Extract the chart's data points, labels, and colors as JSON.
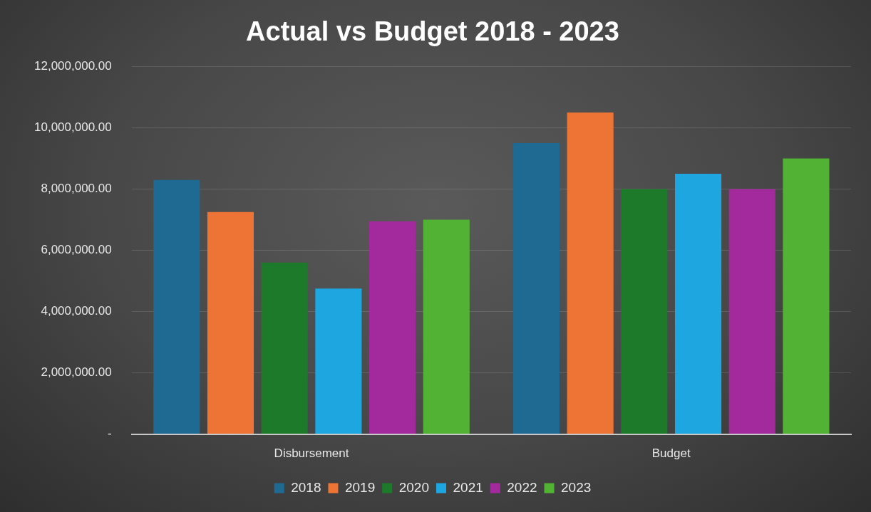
{
  "chart_data": {
    "type": "bar",
    "title": "Actual vs Budget 2018 - 2023",
    "categories": [
      "Disbursement",
      "Budget"
    ],
    "series": [
      {
        "name": "2018",
        "color": "#1f6a92",
        "values": [
          8300000,
          9500000
        ]
      },
      {
        "name": "2019",
        "color": "#ee7436",
        "values": [
          7250000,
          10500000
        ]
      },
      {
        "name": "2020",
        "color": "#1c7a2a",
        "values": [
          5600000,
          8000000
        ]
      },
      {
        "name": "2021",
        "color": "#1ea6e0",
        "values": [
          4750000,
          8500000
        ]
      },
      {
        "name": "2022",
        "color": "#a32a9c",
        "values": [
          6950000,
          8000000
        ]
      },
      {
        "name": "2023",
        "color": "#52b234",
        "values": [
          7000000,
          9000000
        ]
      }
    ],
    "ylim": [
      0,
      12000000
    ],
    "yticks": [
      {
        "value": 0,
        "label": "-"
      },
      {
        "value": 2000000,
        "label": "2,000,000.00"
      },
      {
        "value": 4000000,
        "label": "4,000,000.00"
      },
      {
        "value": 6000000,
        "label": "6,000,000.00"
      },
      {
        "value": 8000000,
        "label": "8,000,000.00"
      },
      {
        "value": 10000000,
        "label": "10,000,000.00"
      },
      {
        "value": 12000000,
        "label": "12,000,000.00"
      }
    ],
    "grid": "y",
    "legend": "bottom"
  }
}
